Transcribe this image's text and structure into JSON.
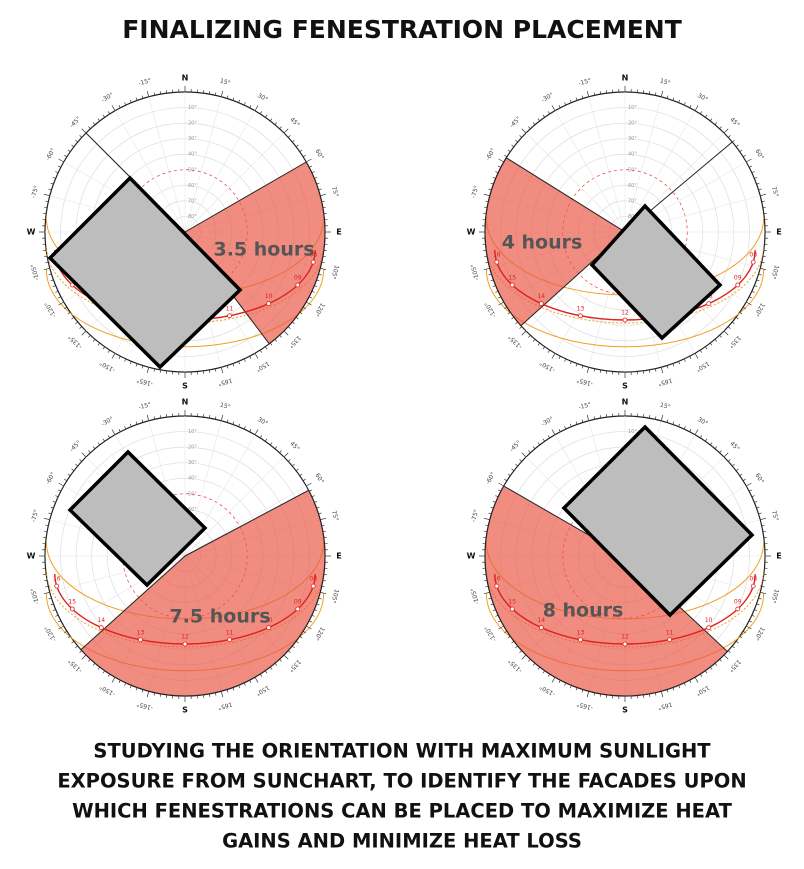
{
  "title": "FINALIZING FENESTRATION PLACEMENT",
  "compass": [
    "N",
    "E",
    "S",
    "W"
  ],
  "azimuth_labels": [
    "15°",
    "30°",
    "45°",
    "60°",
    "75°",
    "105°",
    "120°",
    "135°",
    "150°",
    "165°",
    "-165°",
    "-150°",
    "-135°",
    "-120°",
    "-105°",
    "-75°",
    "-60°",
    "-45°",
    "-30°",
    "-15°"
  ],
  "altitude_labels": [
    "10°",
    "20°",
    "30°",
    "40°",
    "50°",
    "60°",
    "70°",
    "80°"
  ],
  "sun_hours": [
    "16",
    "15",
    "14",
    "13",
    "12",
    "11",
    "10",
    "09",
    "08"
  ],
  "panels": [
    {
      "hours_label": "3.5 hours"
    },
    {
      "hours_label": "4 hours"
    },
    {
      "hours_label": "7.5 hours"
    },
    {
      "hours_label": "8 hours"
    }
  ],
  "caption": {
    "lines": [
      "STUDYING THE ORIENTATION WITH MAXIMUM SUNLIGHT",
      "EXPOSURE FROM SUNCHART, TO IDENTIFY THE FACADES UPON",
      "WHICH FENESTRATIONS CAN BE PLACED TO MAXIMIZE HEAT",
      "GAINS AND MINIMIZE HEAT LOSS"
    ]
  }
}
